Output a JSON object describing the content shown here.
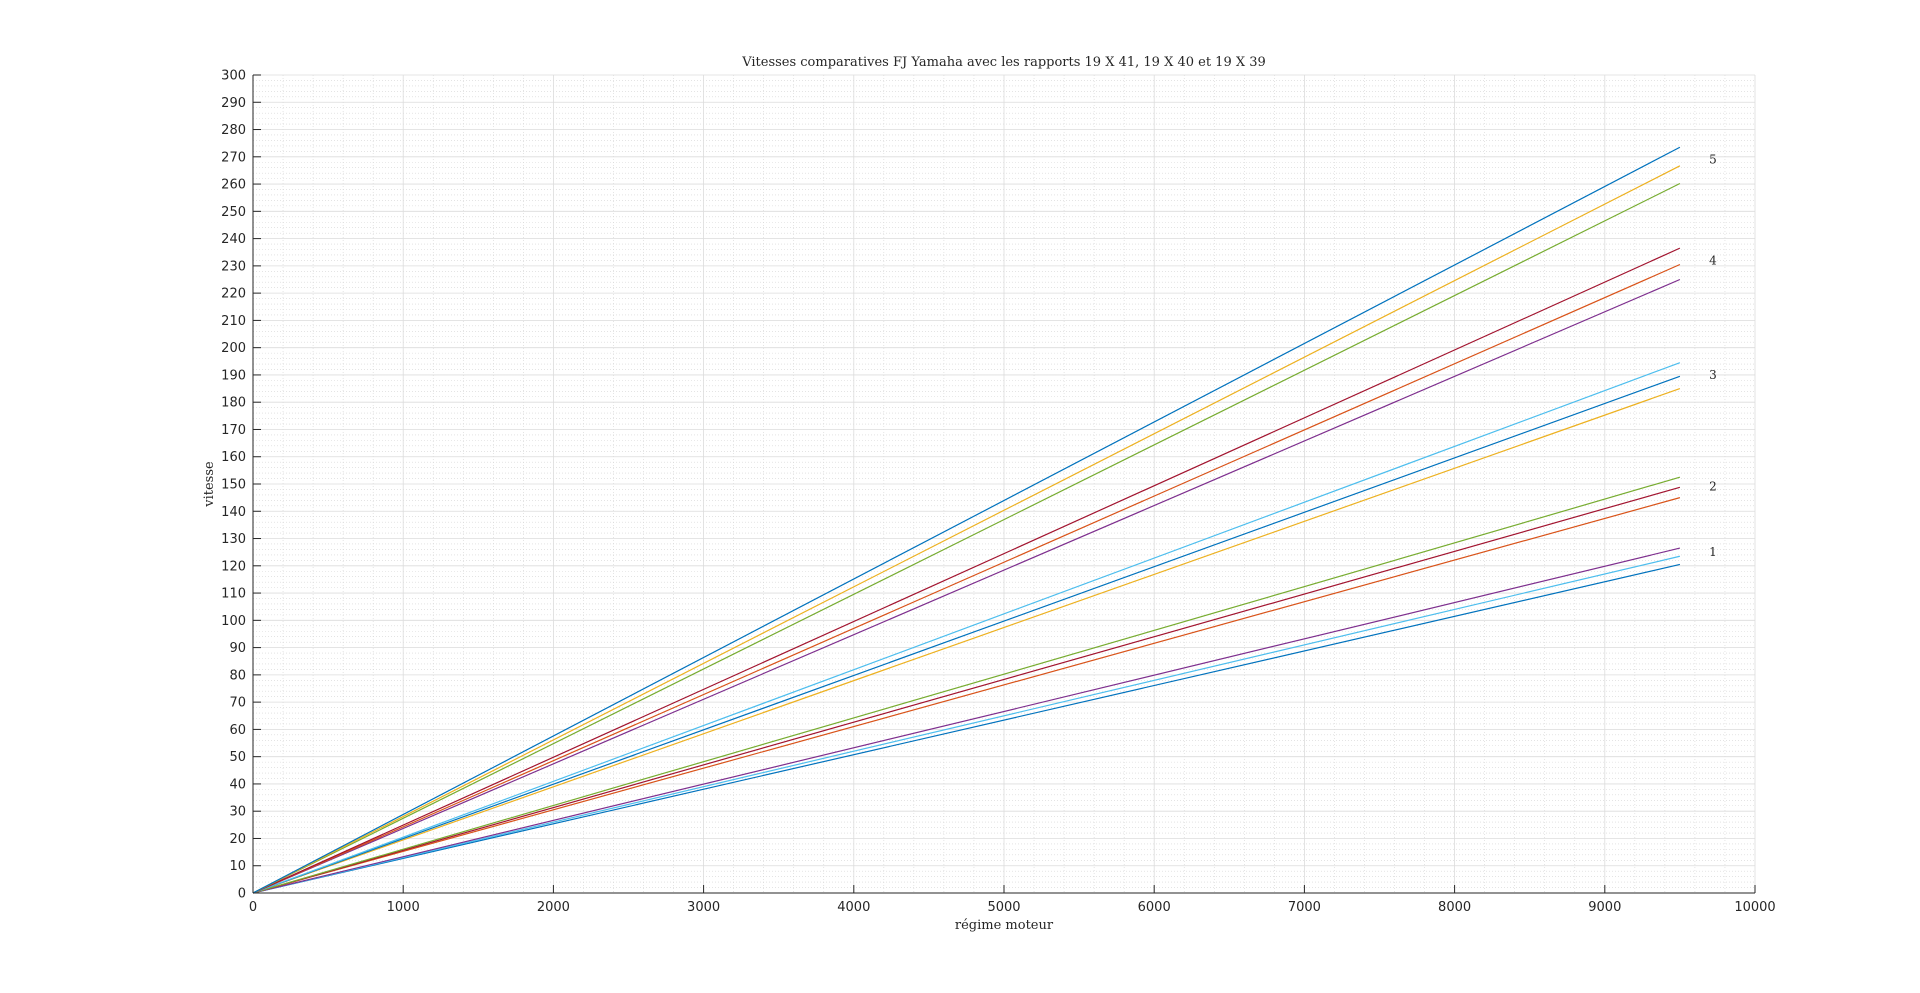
{
  "chart_data": {
    "type": "line",
    "title": "Vitesses comparatives FJ Yamaha avec les rapports 19 X 41, 19 X 40 et 19 X 39",
    "xlabel": "régime moteur",
    "ylabel": "vitesse",
    "xlim": [
      0,
      10000
    ],
    "ylim": [
      0,
      300
    ],
    "xticks": [
      0,
      1000,
      2000,
      3000,
      4000,
      5000,
      6000,
      7000,
      8000,
      9000,
      10000
    ],
    "yticks": [
      0,
      10,
      20,
      30,
      40,
      50,
      60,
      70,
      80,
      90,
      100,
      110,
      120,
      130,
      140,
      150,
      160,
      170,
      180,
      190,
      200,
      210,
      220,
      230,
      240,
      250,
      260,
      270,
      280,
      290,
      300
    ],
    "grid": true,
    "minor_grid": true,
    "legend": "none",
    "series": [
      {
        "color": "#0072BD",
        "x": [
          0,
          9500
        ],
        "y": [
          0,
          120.5
        ]
      },
      {
        "color": "#4DBEEE",
        "x": [
          0,
          9500
        ],
        "y": [
          0,
          123.5
        ]
      },
      {
        "color": "#7E2F8E",
        "x": [
          0,
          9500
        ],
        "y": [
          0,
          126.5
        ]
      },
      {
        "color": "#D95319",
        "x": [
          0,
          9500
        ],
        "y": [
          0,
          145.0
        ]
      },
      {
        "color": "#A2142F",
        "x": [
          0,
          9500
        ],
        "y": [
          0,
          148.8
        ]
      },
      {
        "color": "#77AC30",
        "x": [
          0,
          9500
        ],
        "y": [
          0,
          152.5
        ]
      },
      {
        "color": "#EDB120",
        "x": [
          0,
          9500
        ],
        "y": [
          0,
          185.0
        ]
      },
      {
        "color": "#0072BD",
        "x": [
          0,
          9500
        ],
        "y": [
          0,
          189.5
        ]
      },
      {
        "color": "#4DBEEE",
        "x": [
          0,
          9500
        ],
        "y": [
          0,
          194.5
        ]
      },
      {
        "color": "#7E2F8E",
        "x": [
          0,
          9500
        ],
        "y": [
          0,
          225.0
        ]
      },
      {
        "color": "#D95319",
        "x": [
          0,
          9500
        ],
        "y": [
          0,
          230.5
        ]
      },
      {
        "color": "#A2142F",
        "x": [
          0,
          9500
        ],
        "y": [
          0,
          236.5
        ]
      },
      {
        "color": "#77AC30",
        "x": [
          0,
          9500
        ],
        "y": [
          0,
          260.2
        ]
      },
      {
        "color": "#EDB120",
        "x": [
          0,
          9500
        ],
        "y": [
          0,
          266.7
        ]
      },
      {
        "color": "#0072BD",
        "x": [
          0,
          9500
        ],
        "y": [
          0,
          273.5
        ]
      }
    ],
    "annotations": [
      {
        "text": "1",
        "x": 9720,
        "y": 125
      },
      {
        "text": "2",
        "x": 9720,
        "y": 149
      },
      {
        "text": "3",
        "x": 9720,
        "y": 190
      },
      {
        "text": "4",
        "x": 9720,
        "y": 232
      },
      {
        "text": "5",
        "x": 9720,
        "y": 269
      }
    ]
  }
}
